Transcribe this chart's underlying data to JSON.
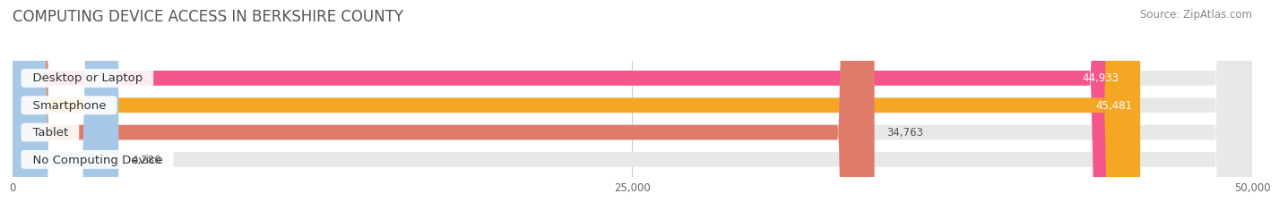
{
  "title": "COMPUTING DEVICE ACCESS IN BERKSHIRE COUNTY",
  "source": "Source: ZipAtlas.com",
  "categories": [
    "Desktop or Laptop",
    "Smartphone",
    "Tablet",
    "No Computing Device"
  ],
  "values": [
    44933,
    45481,
    34763,
    4286
  ],
  "bar_colors": [
    "#f4558a",
    "#f5a623",
    "#e07b6a",
    "#a8c8e8"
  ],
  "value_labels": [
    "44,933",
    "45,481",
    "34,763",
    "4,286"
  ],
  "xlim": [
    0,
    50000
  ],
  "xticks": [
    0,
    25000,
    50000
  ],
  "xtick_labels": [
    "0",
    "25,000",
    "50,000"
  ],
  "title_fontsize": 12,
  "source_fontsize": 8.5,
  "label_fontsize": 9.5,
  "value_fontsize": 8.5,
  "bar_height": 0.55,
  "background_color": "#ffffff",
  "bg_bar_color": "#e8e8e8"
}
